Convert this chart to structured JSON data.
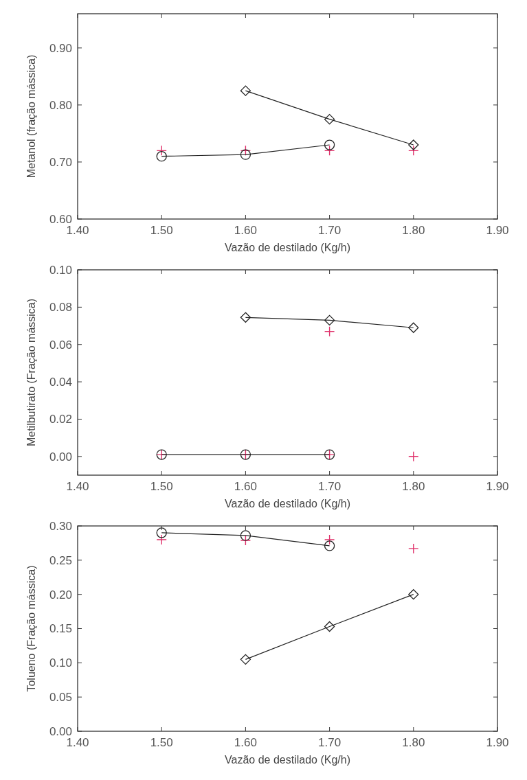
{
  "chart_data": [
    {
      "type": "line",
      "xlabel": "Vazão de destilado (Kg/h)",
      "ylabel": "Metanol (fração mássica)",
      "xlim": [
        1.4,
        1.9
      ],
      "xticks": [
        {
          "value": 1.4,
          "label": "1.40"
        },
        {
          "value": 1.5,
          "label": "1.50"
        },
        {
          "value": 1.6,
          "label": "1.60"
        },
        {
          "value": 1.7,
          "label": "1.70"
        },
        {
          "value": 1.8,
          "label": "1.80"
        },
        {
          "value": 1.9,
          "label": "1.90"
        }
      ],
      "ylim": [
        0.6,
        0.96
      ],
      "yticks": [
        {
          "value": 0.6,
          "label": "0.60"
        },
        {
          "value": 0.7,
          "label": "0.70"
        },
        {
          "value": 0.8,
          "label": "0.80"
        },
        {
          "value": 0.9,
          "label": "0.90"
        }
      ],
      "grid": false,
      "series": [
        {
          "type": "scatter",
          "marker": "cross",
          "color": "#e0306a",
          "x": [
            1.5,
            1.6,
            1.7,
            1.8
          ],
          "values": [
            0.72,
            0.72,
            0.72,
            0.72
          ]
        },
        {
          "type": "line",
          "marker": "circle",
          "color": "#222222",
          "x": [
            1.5,
            1.6,
            1.7
          ],
          "values": [
            0.71,
            0.713,
            0.73
          ]
        },
        {
          "type": "line",
          "marker": "diamond",
          "color": "#222222",
          "x": [
            1.6,
            1.7,
            1.8
          ],
          "values": [
            0.825,
            0.775,
            0.73
          ]
        }
      ]
    },
    {
      "type": "line",
      "xlabel": "Vazão de destilado (Kg/h)",
      "ylabel": "Metilbutirato (Fração mássica)",
      "xlim": [
        1.4,
        1.9
      ],
      "xticks": [
        {
          "value": 1.4,
          "label": "1.40"
        },
        {
          "value": 1.5,
          "label": "1.50"
        },
        {
          "value": 1.6,
          "label": "1.60"
        },
        {
          "value": 1.7,
          "label": "1.70"
        },
        {
          "value": 1.8,
          "label": "1.80"
        },
        {
          "value": 1.9,
          "label": "1.90"
        }
      ],
      "ylim": [
        -0.01,
        0.1
      ],
      "yticks": [
        {
          "value": 0,
          "label": "0.00"
        },
        {
          "value": 0.02,
          "label": "0.02"
        },
        {
          "value": 0.04,
          "label": "0.04"
        },
        {
          "value": 0.06,
          "label": "0.06"
        },
        {
          "value": 0.08,
          "label": "0.08"
        },
        {
          "value": 0.1,
          "label": "0.10"
        }
      ],
      "grid": false,
      "series": [
        {
          "type": "scatter",
          "marker": "cross",
          "color": "#e0306a",
          "x": [
            1.5,
            1.6,
            1.7,
            1.7,
            1.8
          ],
          "values": [
            0.001,
            0.001,
            0.001,
            0.067,
            0
          ]
        },
        {
          "type": "line",
          "marker": "circle",
          "color": "#222222",
          "x": [
            1.5,
            1.6,
            1.7
          ],
          "values": [
            0.001,
            0.001,
            0.001
          ]
        },
        {
          "type": "line",
          "marker": "diamond",
          "color": "#222222",
          "x": [
            1.6,
            1.7,
            1.8
          ],
          "values": [
            0.0745,
            0.073,
            0.069
          ]
        }
      ]
    },
    {
      "type": "line",
      "xlabel": "Vazão de destilado (Kg/h)",
      "ylabel": "Tolueno (Fração mássica)",
      "xlim": [
        1.4,
        1.9
      ],
      "xticks": [
        {
          "value": 1.4,
          "label": "1.40"
        },
        {
          "value": 1.5,
          "label": "1.50"
        },
        {
          "value": 1.6,
          "label": "1.60"
        },
        {
          "value": 1.7,
          "label": "1.70"
        },
        {
          "value": 1.8,
          "label": "1.80"
        },
        {
          "value": 1.9,
          "label": "1.90"
        }
      ],
      "ylim": [
        0,
        0.3
      ],
      "yticks": [
        {
          "value": 0,
          "label": "0.00"
        },
        {
          "value": 0.05,
          "label": "0.05"
        },
        {
          "value": 0.1,
          "label": "0.10"
        },
        {
          "value": 0.15,
          "label": "0.15"
        },
        {
          "value": 0.2,
          "label": "0.20"
        },
        {
          "value": 0.25,
          "label": "0.25"
        },
        {
          "value": 0.3,
          "label": "0.30"
        }
      ],
      "grid": false,
      "series": [
        {
          "type": "scatter",
          "marker": "cross",
          "color": "#e0306a",
          "x": [
            1.5,
            1.6,
            1.7,
            1.8
          ],
          "values": [
            0.28,
            0.279,
            0.28,
            0.267
          ]
        },
        {
          "type": "line",
          "marker": "circle",
          "color": "#222222",
          "x": [
            1.5,
            1.6,
            1.7
          ],
          "values": [
            0.29,
            0.286,
            0.271
          ]
        },
        {
          "type": "line",
          "marker": "diamond",
          "color": "#222222",
          "x": [
            1.6,
            1.7,
            1.8
          ],
          "values": [
            0.105,
            0.153,
            0.2
          ]
        }
      ]
    }
  ]
}
